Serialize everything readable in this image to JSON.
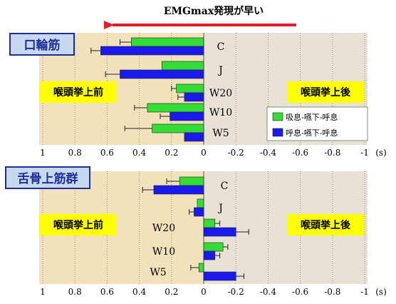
{
  "header": {
    "arrow_label": "EMGmax発現が早い",
    "arrow_color": "#e21e26"
  },
  "colors": {
    "inhale_series": "#33dd33",
    "exhale_series": "#1a1aee",
    "left_region_bg": "#f2e2bc",
    "right_region_bg": "#e8e2d6",
    "label_bg": "#ffff00",
    "muscle_title_bg": "#c7d9ee"
  },
  "chart_data": [
    {
      "type": "bar",
      "orientation": "horizontal",
      "title": "口輪筋",
      "region_labels": {
        "left": "喉頭挙上前",
        "right": "喉頭挙上後"
      },
      "categories": [
        "C",
        "J",
        "W20",
        "W10",
        "W5"
      ],
      "series": [
        {
          "name": "吸息-嚥下-呼息",
          "values": [
            0.45,
            0.26,
            0.17,
            0.35,
            0.32
          ],
          "errors": [
            0.07,
            0.0,
            0.03,
            0.08,
            0.17
          ]
        },
        {
          "name": "呼息-嚥下-呼息",
          "values": [
            0.64,
            0.52,
            0.12,
            0.21,
            0.12
          ],
          "errors": [
            0.06,
            0.09,
            0.04,
            0.06,
            0.0
          ]
        }
      ],
      "legend_position": "right",
      "xlim": [
        1,
        -1
      ],
      "xticks": [
        "1",
        "0.8",
        "0.6",
        "0.4",
        "0.2",
        "0",
        "-0.2",
        "-0.4",
        "-0.6",
        "-0.8",
        "-1"
      ],
      "x_unit": "(s)",
      "grid": true
    },
    {
      "type": "bar",
      "orientation": "horizontal",
      "title": "舌骨上筋群",
      "region_labels": {
        "left": "喉頭挙上前",
        "right": "喉頭挙上後"
      },
      "categories": [
        "C",
        "J",
        "W20",
        "W10",
        "W5"
      ],
      "series": [
        {
          "name": "吸息-嚥下-呼息",
          "values": [
            0.15,
            0.04,
            -0.07,
            -0.12,
            0.03
          ],
          "errors": [
            0.08,
            0.0,
            0.03,
            0.03,
            0.05
          ]
        },
        {
          "name": "呼息-嚥下-呼息",
          "values": [
            0.31,
            0.06,
            -0.2,
            -0.07,
            -0.2
          ],
          "errors": [
            0.07,
            0.03,
            0.08,
            0.03,
            0.05
          ]
        }
      ],
      "xlim": [
        1,
        -1
      ],
      "xticks": [
        "1",
        "0.8",
        "0.6",
        "0.4",
        "0.2",
        "0",
        "-0.2",
        "-0.4",
        "-0.6",
        "-0.8",
        "-1"
      ],
      "x_unit": "(s)",
      "grid": true
    }
  ]
}
